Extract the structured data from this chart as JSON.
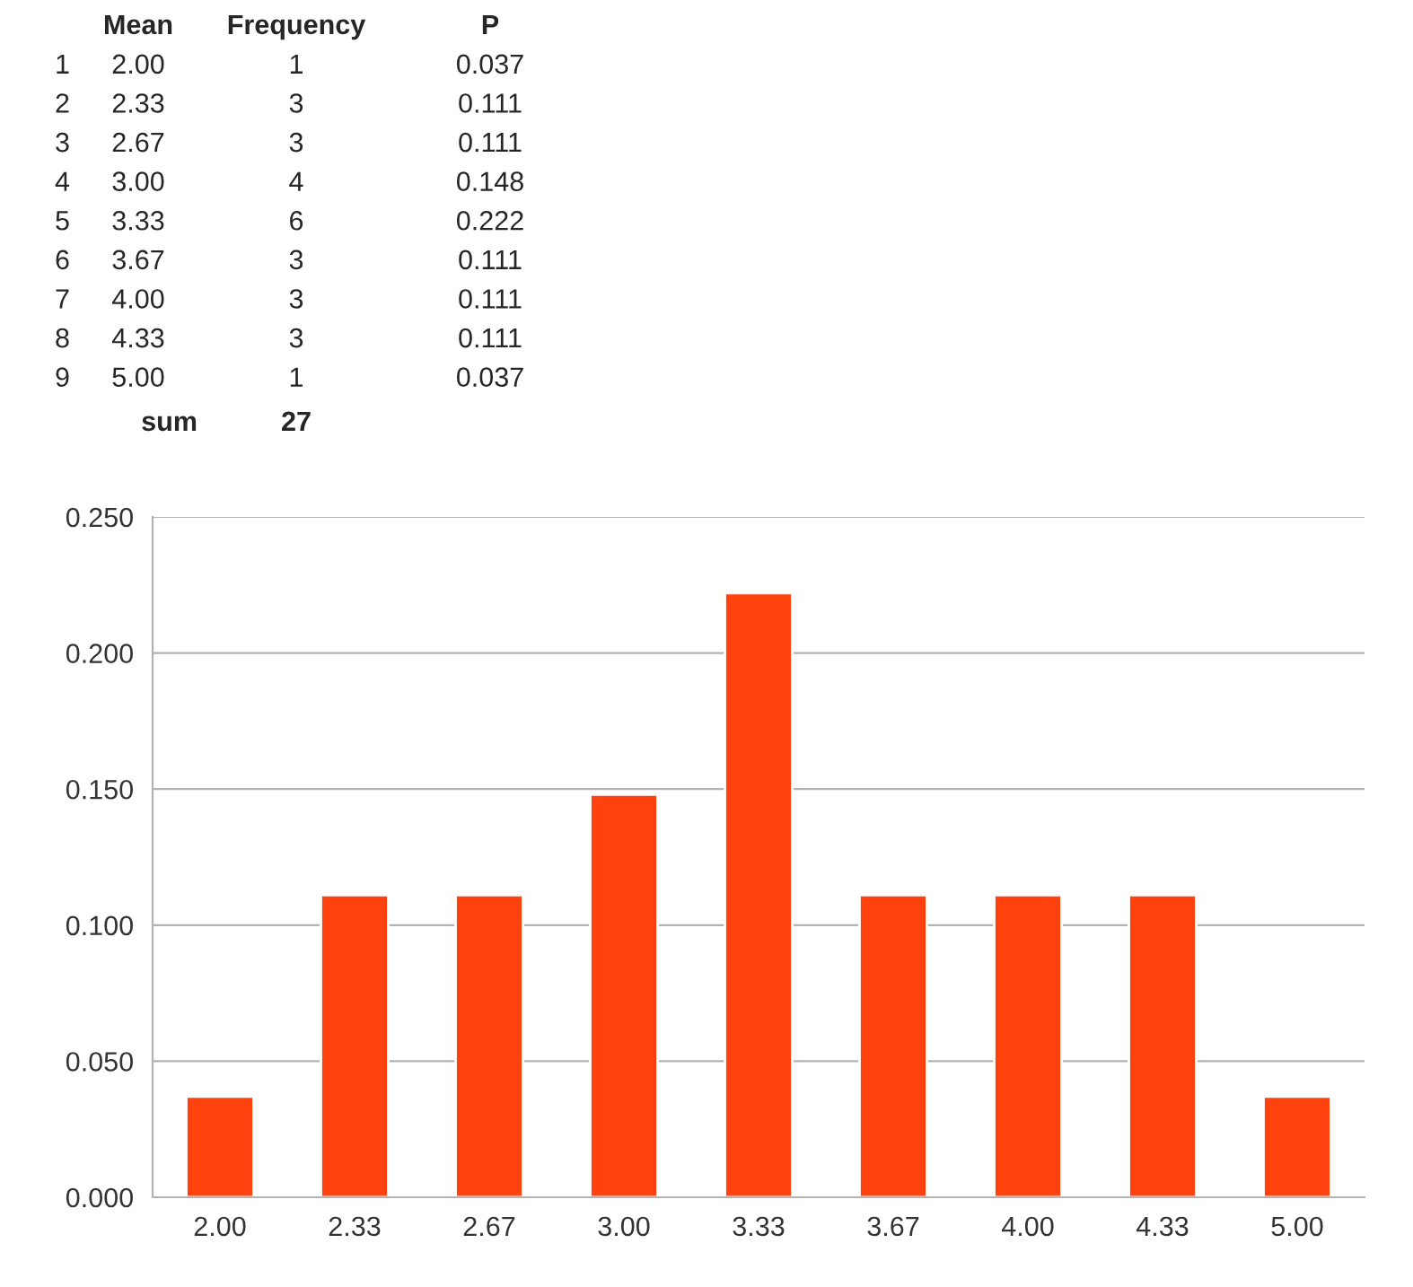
{
  "chart_data": {
    "type": "bar",
    "categories": [
      "2.00",
      "2.33",
      "2.67",
      "3.00",
      "3.33",
      "3.67",
      "4.00",
      "4.33",
      "5.00"
    ],
    "values": [
      0.037,
      0.111,
      0.111,
      0.148,
      0.222,
      0.111,
      0.111,
      0.111,
      0.037
    ],
    "color": "#ff420e",
    "ylim": [
      0,
      0.25
    ],
    "yticks": [
      {
        "value": 0,
        "label": "0.000"
      },
      {
        "value": 0.05,
        "label": "0.050"
      },
      {
        "value": 0.1,
        "label": "0.100"
      },
      {
        "value": 0.15,
        "label": "0.150"
      },
      {
        "value": 0.2,
        "label": "0.200"
      },
      {
        "value": 0.25,
        "label": "0.250"
      }
    ],
    "grid": "y",
    "annotations": [
      "Mean",
      "Frequency",
      "P",
      "1",
      "2",
      "3",
      "4",
      "5",
      "6",
      "7",
      "8",
      "9",
      "1",
      "3",
      "3",
      "4",
      "6",
      "3",
      "3",
      "3",
      "1",
      "sum",
      "27",
      "0.037",
      "0.111",
      "0.111",
      "0.148",
      "0.222",
      "0.111",
      "0.111",
      "0.111",
      "0.037"
    ]
  }
}
